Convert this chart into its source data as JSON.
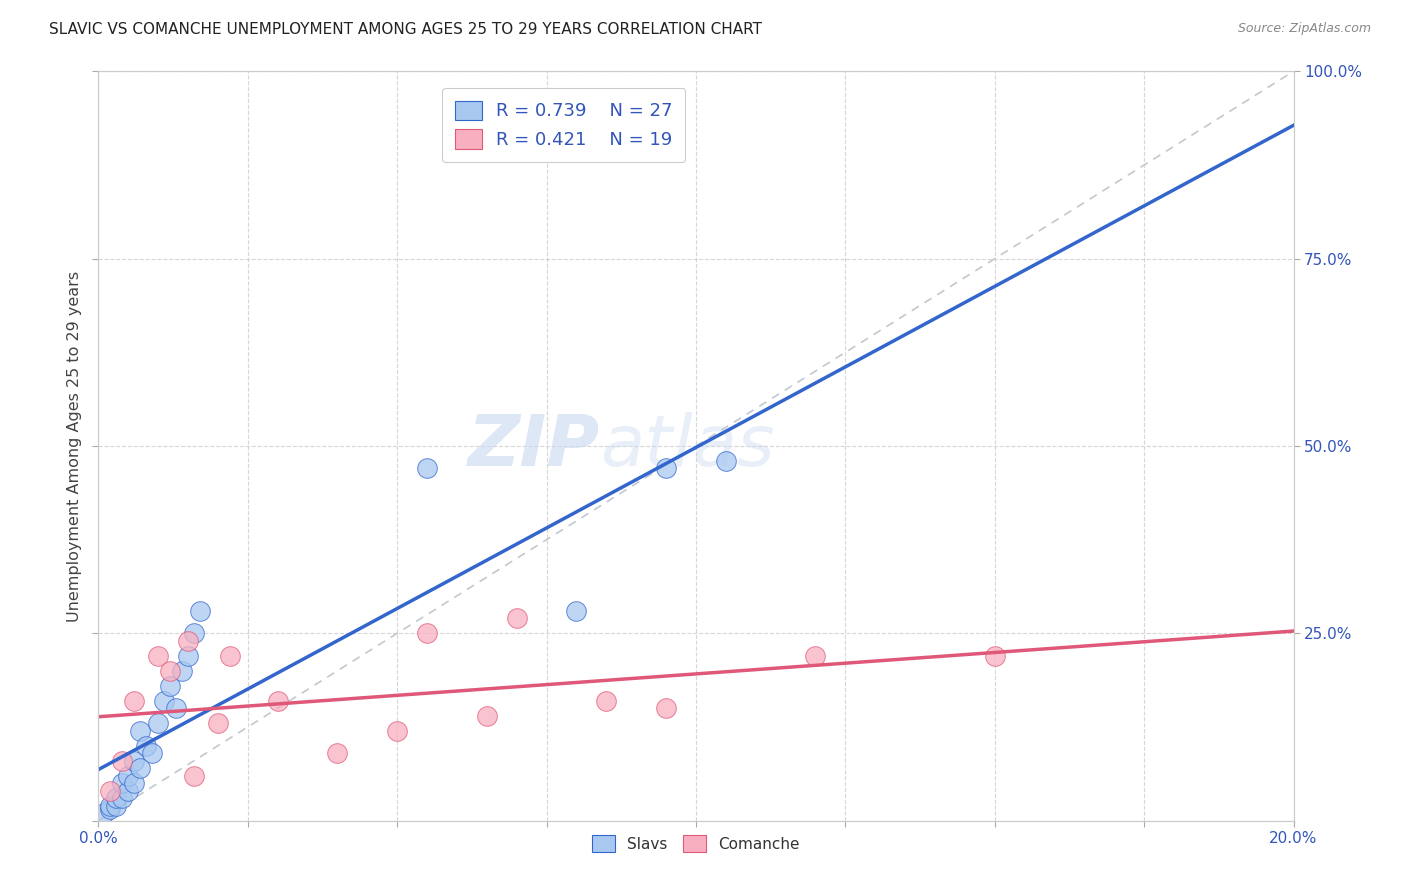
{
  "title": "SLAVIC VS COMANCHE UNEMPLOYMENT AMONG AGES 25 TO 29 YEARS CORRELATION CHART",
  "source": "Source: ZipAtlas.com",
  "ylabel": "Unemployment Among Ages 25 to 29 years",
  "xlim": [
    0.0,
    0.2
  ],
  "ylim": [
    0.0,
    1.0
  ],
  "slavs_color": "#A8C8F0",
  "comanche_color": "#F8B0C0",
  "slavs_line_color": "#3366CC",
  "comanche_line_color": "#E05878",
  "ref_line_color": "#C0C8D0",
  "legend_text_color": "#3355BB",
  "slavs_R": 0.739,
  "slavs_N": 27,
  "comanche_R": 0.421,
  "comanche_N": 19,
  "watermark_zip": "ZIP",
  "watermark_atlas": "atlas",
  "slavs_x": [
    0.001,
    0.002,
    0.002,
    0.003,
    0.003,
    0.004,
    0.004,
    0.005,
    0.005,
    0.006,
    0.006,
    0.007,
    0.007,
    0.008,
    0.009,
    0.01,
    0.011,
    0.012,
    0.013,
    0.014,
    0.015,
    0.016,
    0.017,
    0.055,
    0.08,
    0.095,
    0.105
  ],
  "slavs_y": [
    0.01,
    0.015,
    0.02,
    0.02,
    0.03,
    0.03,
    0.05,
    0.04,
    0.06,
    0.05,
    0.08,
    0.07,
    0.12,
    0.1,
    0.09,
    0.13,
    0.16,
    0.18,
    0.15,
    0.2,
    0.22,
    0.25,
    0.28,
    0.47,
    0.28,
    0.47,
    0.48
  ],
  "comanche_x": [
    0.002,
    0.004,
    0.006,
    0.01,
    0.012,
    0.015,
    0.016,
    0.02,
    0.022,
    0.03,
    0.04,
    0.05,
    0.055,
    0.065,
    0.07,
    0.085,
    0.095,
    0.12,
    0.15
  ],
  "comanche_y": [
    0.04,
    0.08,
    0.16,
    0.22,
    0.2,
    0.24,
    0.06,
    0.13,
    0.22,
    0.16,
    0.09,
    0.12,
    0.25,
    0.14,
    0.27,
    0.16,
    0.15,
    0.22,
    0.22
  ]
}
